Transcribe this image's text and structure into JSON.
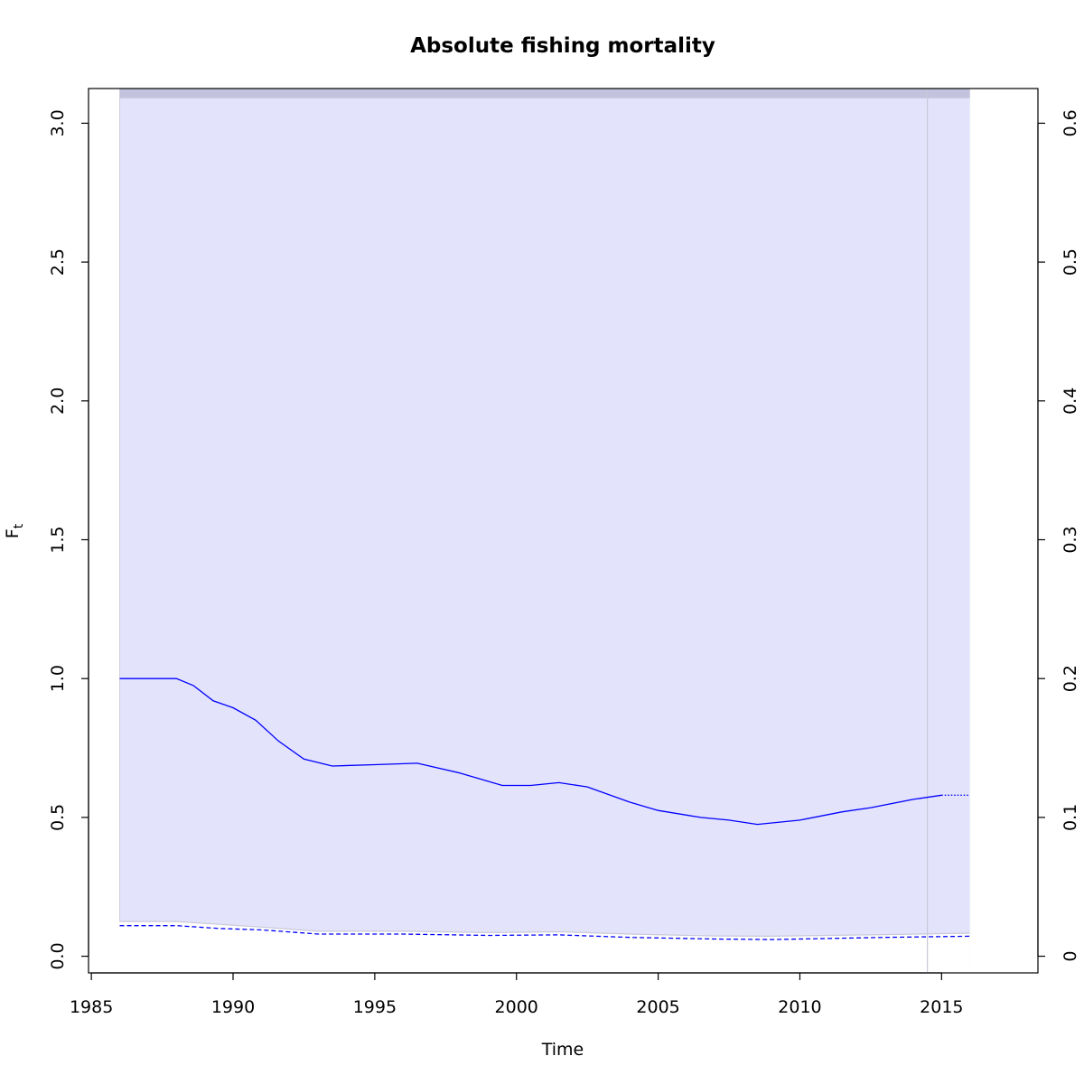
{
  "chart_data": {
    "type": "line",
    "title": "Absolute fishing mortality",
    "xlabel": "Time",
    "ylabel": "F",
    "ylabel_subscript": "t",
    "xlim": [
      1984.9,
      2018.4
    ],
    "ylim": [
      -0.06,
      3.125
    ],
    "y2lim": [
      -0.012,
      0.625
    ],
    "x_ticks": [
      1985,
      1990,
      1995,
      2000,
      2005,
      2010,
      2015
    ],
    "y_ticks": [
      0.0,
      0.5,
      1.0,
      1.5,
      2.0,
      2.5,
      3.0
    ],
    "y_tick_labels": [
      "0.0",
      "0.5",
      "1.0",
      "1.5",
      "2.0",
      "2.5",
      "3.0"
    ],
    "y2_ticks": [
      0,
      0.1,
      0.2,
      0.3,
      0.4,
      0.5,
      0.6
    ],
    "y2_tick_labels": [
      "0",
      "0.1",
      "0.2",
      "0.3",
      "0.4",
      "0.5",
      "0.6"
    ],
    "confidence_band": {
      "x_start": 1986.0,
      "x_end": 2016.0,
      "upper": 3.09,
      "color": "#e3e3fc",
      "top_strip_color": "#c3c3de"
    },
    "lower_bound_line": {
      "x": [
        1986.0,
        1988.0,
        1989.5,
        1991.0,
        1993.0,
        1996.0,
        1999.0,
        2001.5,
        2004.0,
        2007.0,
        2009.0,
        2011.0,
        2013.0,
        2016.0
      ],
      "y": [
        0.125,
        0.125,
        0.115,
        0.105,
        0.09,
        0.09,
        0.085,
        0.088,
        0.08,
        0.073,
        0.072,
        0.075,
        0.078,
        0.083
      ],
      "color": "#c9c9d8"
    },
    "last_data_year": 2014.5,
    "series": [
      {
        "style": "solid",
        "color": "#0000ff",
        "x": [
          1986.0,
          1987.0,
          1988.0,
          1988.6,
          1989.3,
          1990.0,
          1990.8,
          1991.6,
          1992.5,
          1993.5,
          1995.0,
          1996.5,
          1998.0,
          1999.5,
          2000.5,
          2001.5,
          2002.5,
          2004.0,
          2005.0,
          2006.5,
          2007.5,
          2008.5,
          2010.0,
          2011.5,
          2012.5,
          2014.0,
          2015.0
        ],
        "values": [
          1.0,
          1.0,
          1.0,
          0.975,
          0.92,
          0.895,
          0.85,
          0.775,
          0.71,
          0.685,
          0.69,
          0.695,
          0.66,
          0.615,
          0.615,
          0.625,
          0.61,
          0.555,
          0.525,
          0.5,
          0.49,
          0.475,
          0.49,
          0.52,
          0.535,
          0.565,
          0.58
        ]
      },
      {
        "style": "dotted",
        "color": "#0000ff",
        "x": [
          2015.0,
          2016.0
        ],
        "values": [
          0.58,
          0.58
        ]
      },
      {
        "style": "dashed",
        "color": "#0000ff",
        "x": [
          1986.0,
          1988.0,
          1989.5,
          1991.0,
          1993.0,
          1996.0,
          1999.0,
          2001.5,
          2004.0,
          2007.0,
          2009.0,
          2011.0,
          2013.0,
          2016.0
        ],
        "values": [
          0.11,
          0.11,
          0.1,
          0.095,
          0.08,
          0.08,
          0.075,
          0.077,
          0.068,
          0.062,
          0.06,
          0.064,
          0.068,
          0.072
        ]
      }
    ]
  }
}
